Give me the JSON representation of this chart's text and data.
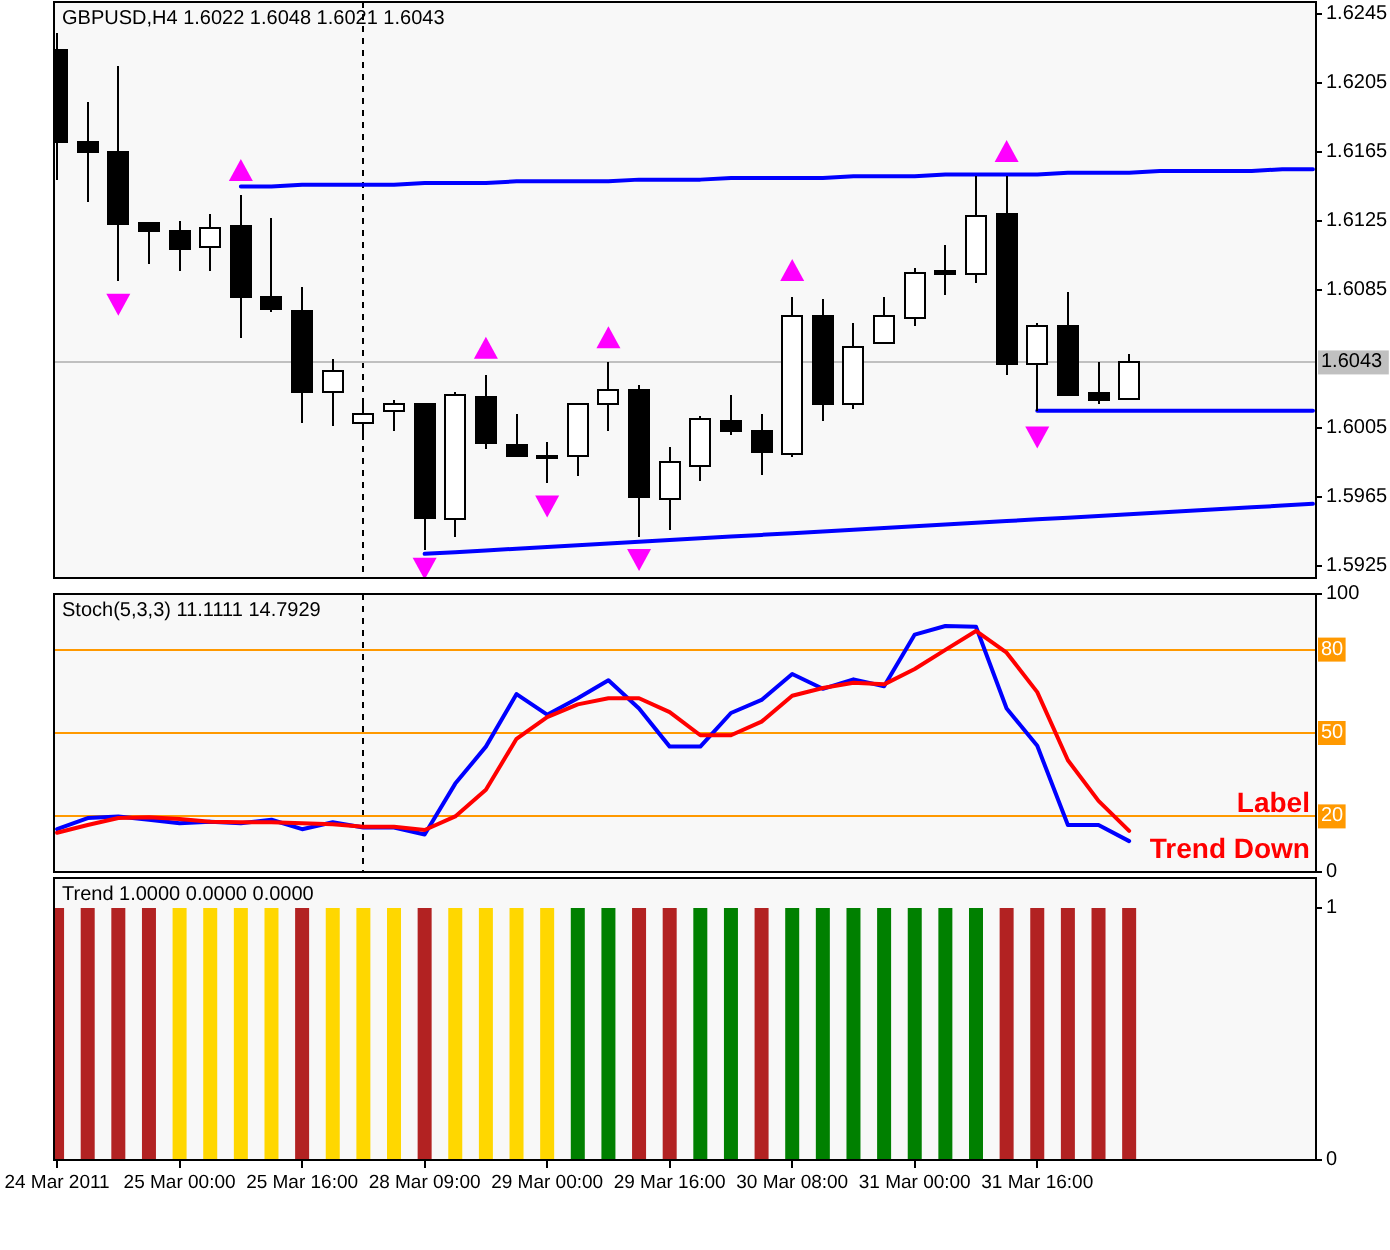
{
  "chart_data": [
    {
      "type": "candlestick",
      "title": "GBPUSD,H4 1.6022 1.6048 1.6021 1.6043",
      "categories": [
        null,
        null,
        null,
        null,
        null,
        null,
        null,
        null,
        null,
        null,
        null,
        null,
        null,
        null,
        null,
        null,
        null,
        null,
        null,
        null,
        null,
        null,
        null,
        null,
        null,
        null,
        null,
        null,
        null,
        null,
        null,
        null,
        null,
        null,
        null,
        null,
        null,
        null,
        null,
        null,
        null,
        null
      ],
      "ohlc": [
        [
          1.6224,
          1.6234,
          1.6149,
          1.6171
        ],
        [
          1.6171,
          1.6194,
          1.6136,
          1.6165
        ],
        [
          1.6165,
          1.6215,
          1.609,
          1.6123
        ],
        [
          1.6124,
          1.6124,
          1.61,
          1.6119
        ],
        [
          1.6119,
          1.6125,
          1.6096,
          1.6109
        ],
        [
          1.611,
          1.6129,
          1.6096,
          1.6121
        ],
        [
          1.6122,
          1.614,
          1.6057,
          1.6081
        ],
        [
          1.6081,
          1.6127,
          1.6072,
          1.6074
        ],
        [
          1.6073,
          1.6087,
          1.6008,
          1.6026
        ],
        [
          1.6026,
          1.6045,
          1.6006,
          1.6038
        ],
        [
          1.6008,
          1.6019,
          1.5999,
          1.6013
        ],
        [
          1.6015,
          1.6021,
          1.6003,
          1.6019
        ],
        [
          1.6019,
          1.6019,
          1.5934,
          1.5953
        ],
        [
          1.5952,
          1.6026,
          1.5942,
          1.6024
        ],
        [
          1.6023,
          1.6036,
          1.5993,
          1.5996
        ],
        [
          1.5995,
          1.6013,
          1.5988,
          1.5989
        ],
        [
          1.5989,
          1.5997,
          1.5973,
          1.5989
        ],
        [
          1.5989,
          1.6019,
          1.5977,
          1.6019
        ],
        [
          1.6019,
          1.6043,
          1.6003,
          1.6027
        ],
        [
          1.6027,
          1.603,
          1.5942,
          1.5965
        ],
        [
          1.5964,
          1.5994,
          1.5946,
          1.5985
        ],
        [
          1.5983,
          1.6012,
          1.5974,
          1.601
        ],
        [
          1.6009,
          1.6024,
          1.6001,
          1.6003
        ],
        [
          1.6003,
          1.6013,
          1.5978,
          1.5991
        ],
        [
          1.599,
          1.6081,
          1.5988,
          1.607
        ],
        [
          1.607,
          1.608,
          1.6009,
          1.6019
        ],
        [
          1.6019,
          1.6066,
          1.6016,
          1.6052
        ],
        [
          1.6054,
          1.6081,
          1.6054,
          1.607
        ],
        [
          1.6069,
          1.6098,
          1.6064,
          1.6095
        ],
        [
          1.6096,
          1.6111,
          1.6082,
          1.6094
        ],
        [
          1.6094,
          1.6151,
          1.6089,
          1.6128
        ],
        [
          1.6129,
          1.6151,
          1.6036,
          1.6042
        ],
        [
          1.6042,
          1.6066,
          1.6015,
          1.6064
        ],
        [
          1.6064,
          1.6084,
          1.6024,
          1.6024
        ],
        [
          1.6025,
          1.6043,
          1.6019,
          1.6021
        ],
        [
          1.6022,
          1.6048,
          1.6021,
          1.6043
        ],
        null,
        null,
        null,
        null,
        null,
        null
      ],
      "series": [
        {
          "type": "line",
          "color": "#0000ff",
          "values": [
            null,
            null,
            null,
            null,
            null,
            null,
            1.6145,
            1.6145,
            1.6146,
            1.6146,
            1.6146,
            1.6146,
            1.6147,
            1.6147,
            1.6147,
            1.6148,
            1.6148,
            1.6148,
            1.6148,
            1.6149,
            1.6149,
            1.6149,
            1.615,
            1.615,
            1.615,
            1.615,
            1.6151,
            1.6151,
            1.6151,
            1.6152,
            1.6152,
            1.6152,
            1.6152,
            1.6153,
            1.6153,
            1.6153,
            1.6154,
            1.6154,
            1.6154,
            1.6154,
            1.6155,
            1.6155
          ]
        },
        {
          "type": "line",
          "color": "#0000ff",
          "values": [
            null,
            null,
            null,
            null,
            null,
            null,
            null,
            null,
            null,
            null,
            null,
            null,
            1.5932,
            1.5933,
            1.5934,
            1.5935,
            1.5936,
            1.5937,
            1.5938,
            1.5939,
            1.594,
            1.5941,
            1.5942,
            1.5943,
            1.5944,
            1.5945,
            1.5946,
            1.5947,
            1.5948,
            1.5949,
            1.595,
            1.5951,
            1.5952,
            1.5953,
            1.5954,
            1.5955,
            1.5956,
            1.5957,
            1.5958,
            1.5959,
            1.596,
            1.5961
          ]
        },
        {
          "type": "line",
          "color": "#0000ff",
          "values": [
            null,
            null,
            null,
            null,
            null,
            null,
            null,
            null,
            null,
            null,
            null,
            null,
            null,
            null,
            null,
            null,
            null,
            null,
            null,
            null,
            null,
            null,
            null,
            null,
            null,
            null,
            null,
            null,
            null,
            null,
            null,
            null,
            1.6015,
            1.6015,
            1.6015,
            1.6015,
            1.6015,
            1.6015,
            1.6015,
            1.6015,
            1.6015,
            1.6015
          ]
        },
        {
          "type": "scatter",
          "color": "#ff00ff",
          "marker": "triangle",
          "values": [
            null,
            null,
            null,
            null,
            null,
            null,
            1.6154,
            null,
            null,
            null,
            null,
            null,
            null,
            null,
            1.6051,
            null,
            null,
            null,
            1.6057,
            null,
            null,
            null,
            null,
            null,
            1.6096,
            null,
            null,
            null,
            null,
            null,
            null,
            1.6165,
            null,
            null,
            null,
            null,
            null,
            null,
            null,
            null,
            null,
            null
          ]
        },
        {
          "type": "scatter",
          "color": "#ff00ff",
          "marker": "triangle",
          "values": [
            null,
            null,
            1.6077,
            null,
            null,
            null,
            null,
            null,
            null,
            null,
            null,
            null,
            1.5924,
            null,
            null,
            null,
            1.596,
            null,
            null,
            1.5929,
            null,
            null,
            null,
            null,
            null,
            null,
            null,
            null,
            null,
            null,
            null,
            null,
            1.6,
            null,
            null,
            null,
            null,
            null,
            null,
            null,
            null,
            null
          ]
        }
      ],
      "ylim": [
        1.5918,
        1.6252
      ],
      "yticks": [
        1.5925,
        1.5965,
        1.6005,
        1.6085,
        1.6125,
        1.6165,
        1.6205,
        1.6245
      ],
      "ref_lines": [
        {
          "axis": "y",
          "value": 1.6043,
          "label": "1.6043",
          "color": "#c0c0c0"
        }
      ],
      "tick_labels": "y"
    },
    {
      "type": "line",
      "title": "Stoch(5,3,3) 11.1111 14.7929",
      "categories": [
        null,
        null,
        null,
        null,
        null,
        null,
        null,
        null,
        null,
        null,
        null,
        null,
        null,
        null,
        null,
        null,
        null,
        null,
        null,
        null,
        null,
        null,
        null,
        null,
        null,
        null,
        null,
        null,
        null,
        null,
        null,
        null,
        null,
        null,
        null,
        null,
        null,
        null,
        null,
        null,
        null,
        null
      ],
      "series": [
        {
          "color": "#0000ff",
          "values": [
            15.4,
            19.4,
            20.0,
            18.8,
            17.5,
            18.1,
            17.5,
            18.8,
            15.4,
            17.9,
            16.0,
            16.0,
            13.5,
            31.8,
            45.1,
            64.0,
            56.6,
            62.5,
            69.0,
            58.8,
            45.1,
            45.1,
            57.2,
            61.9,
            71.2,
            65.9,
            69.3,
            66.8,
            85.4,
            88.5,
            88.2,
            58.8,
            45.4,
            16.9,
            16.9,
            11.1,
            null,
            null,
            null,
            null,
            null,
            null
          ]
        },
        {
          "color": "#ff0000",
          "values": [
            14.1,
            16.9,
            19.4,
            19.7,
            19.1,
            18.1,
            17.9,
            17.9,
            17.5,
            17.2,
            16.3,
            16.3,
            15.1,
            20.0,
            29.6,
            47.9,
            55.7,
            60.3,
            62.5,
            62.5,
            57.5,
            49.2,
            49.2,
            54.1,
            63.4,
            66.2,
            68.1,
            67.5,
            73.0,
            79.9,
            86.7,
            78.9,
            64.7,
            40.2,
            25.6,
            14.8,
            null,
            null,
            null,
            null,
            null,
            null
          ]
        }
      ],
      "ylim": [
        0,
        100
      ],
      "yticks": [
        0,
        100
      ],
      "ref_lines": [
        {
          "axis": "y",
          "value": 80,
          "label": "80",
          "color": "#ff9900"
        },
        {
          "axis": "y",
          "value": 50,
          "label": "50",
          "color": "#ff9900"
        },
        {
          "axis": "y",
          "value": 20,
          "label": "20",
          "color": "#ff9900"
        }
      ],
      "annotations": [
        "Label",
        "Trend Down"
      ],
      "tick_labels": "y"
    },
    {
      "type": "bar",
      "title": "Trend 1.0000 0.0000 0.0000",
      "categories": [
        "24 Mar 2011",
        null,
        null,
        null,
        "25 Mar 00:00",
        null,
        null,
        null,
        "25 Mar 16:00",
        null,
        null,
        null,
        "28 Mar 09:00",
        null,
        null,
        null,
        "29 Mar 00:00",
        null,
        null,
        null,
        "29 Mar 16:00",
        null,
        null,
        null,
        "30 Mar 08:00",
        null,
        null,
        null,
        "31 Mar 00:00",
        null,
        null,
        null,
        "31 Mar 16:00",
        null,
        null,
        null,
        null,
        null,
        null,
        null,
        null,
        null
      ],
      "values": [
        1,
        1,
        1,
        1,
        1,
        1,
        1,
        1,
        1,
        1,
        1,
        1,
        1,
        1,
        1,
        1,
        1,
        1,
        1,
        1,
        1,
        1,
        1,
        1,
        1,
        1,
        1,
        1,
        1,
        1,
        1,
        1,
        1,
        1,
        1,
        1,
        null,
        null,
        null,
        null,
        null,
        null
      ],
      "colors": [
        "#b22222",
        "#b22222",
        "#b22222",
        "#b22222",
        "#ffd700",
        "#ffd700",
        "#ffd700",
        "#ffd700",
        "#b22222",
        "#ffd700",
        "#ffd700",
        "#ffd700",
        "#b22222",
        "#ffd700",
        "#ffd700",
        "#ffd700",
        "#ffd700",
        "#008000",
        "#008000",
        "#b22222",
        "#b22222",
        "#008000",
        "#008000",
        "#b22222",
        "#008000",
        "#008000",
        "#008000",
        "#008000",
        "#008000",
        "#008000",
        "#008000",
        "#b22222",
        "#b22222",
        "#b22222",
        "#b22222",
        "#b22222",
        null,
        null,
        null,
        null,
        null,
        null
      ],
      "ylim": [
        0,
        1
      ],
      "yticks": [
        0,
        1
      ]
    }
  ]
}
